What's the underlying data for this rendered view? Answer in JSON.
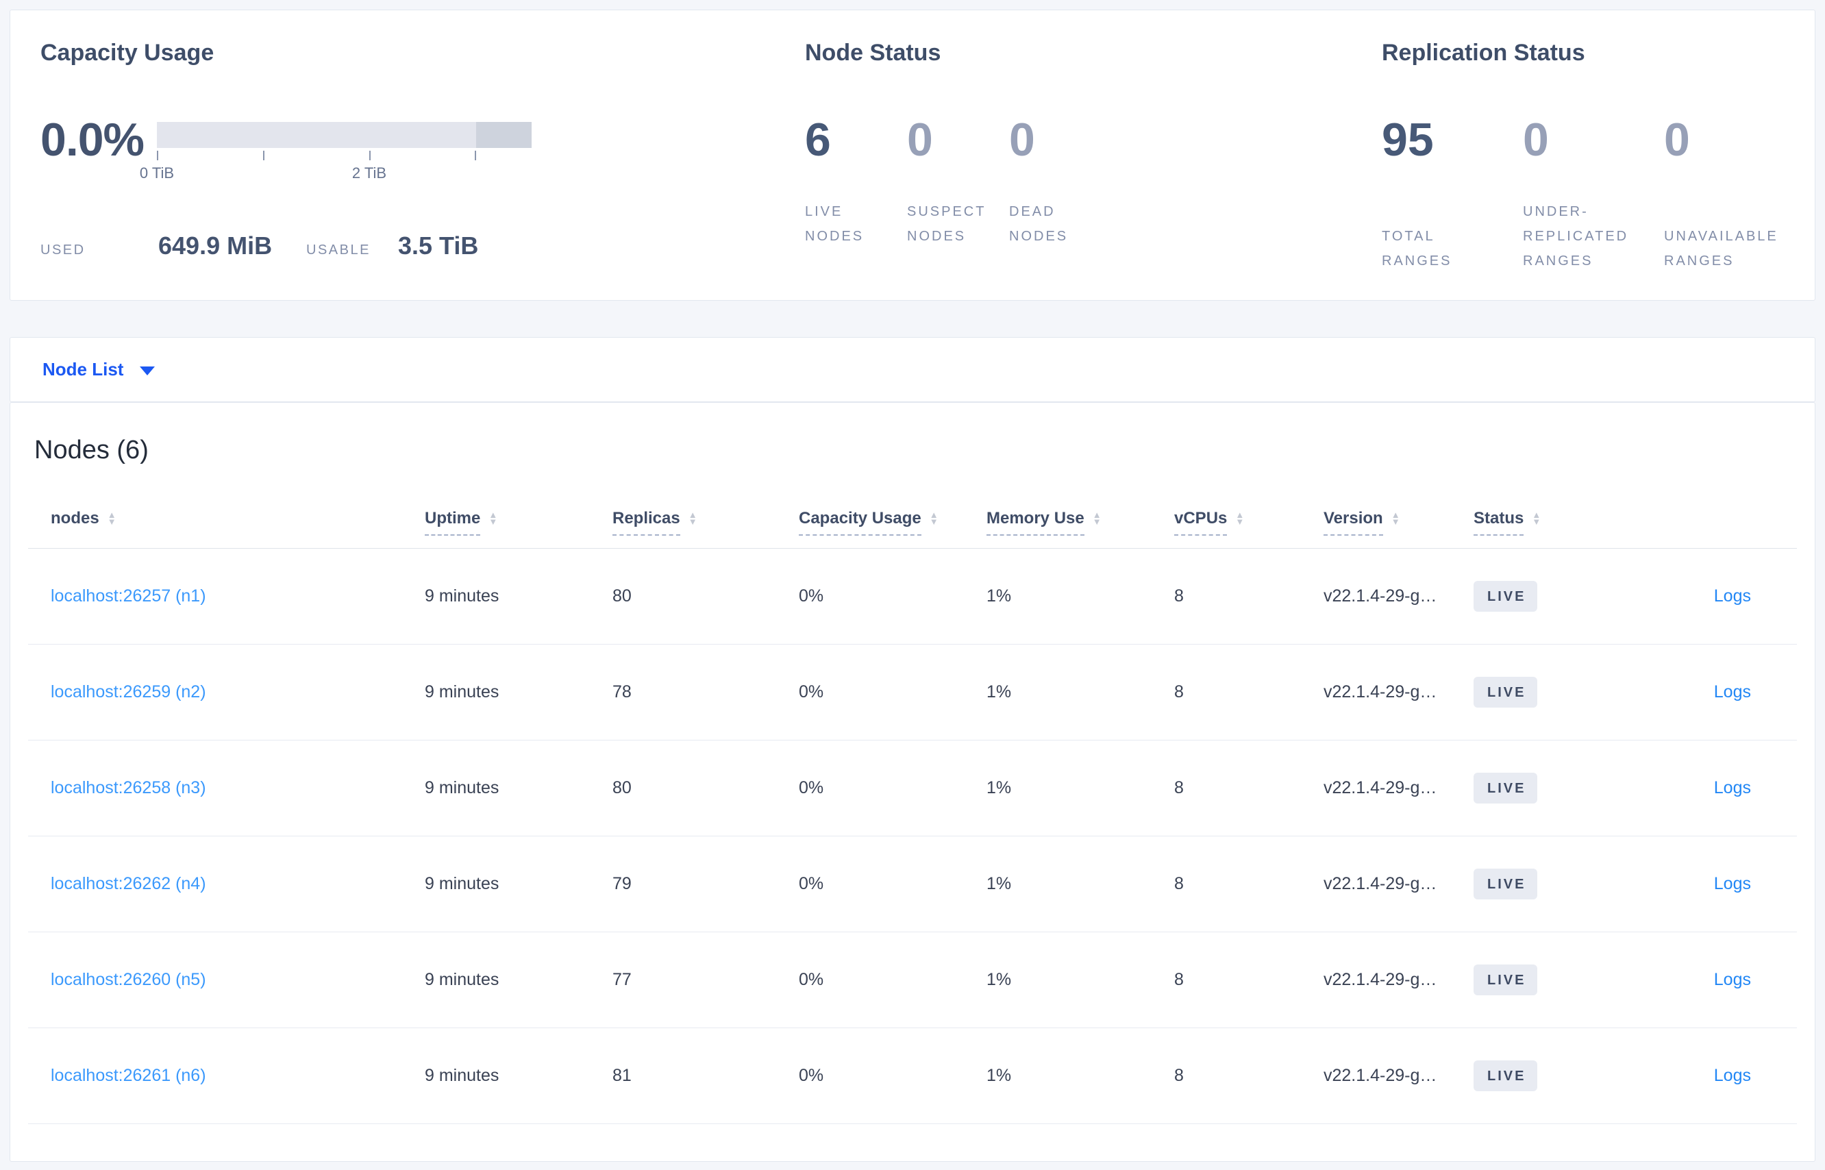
{
  "colors": {
    "page_bg": "#f4f6fa",
    "card_border": "#e2e7ef",
    "heading_text": "#3e4d68",
    "number_strong": "#475977",
    "number_muted": "#97a0b7",
    "label_muted": "#828da8",
    "capacity_bar_light": "#e3e5ed",
    "capacity_bar_dark": "#ced3dd",
    "link_primary_blue": "#1b58f2",
    "node_link_blue": "#3b99fc",
    "logs_link_blue": "#2287f5",
    "badge_bg": "#e8ebf2",
    "badge_text": "#3e4a63"
  },
  "summary": {
    "capacity": {
      "title": "Capacity Usage",
      "percent": "0.0%",
      "axis_ticks": [
        {
          "label": "0 TiB"
        },
        {
          "label": ""
        },
        {
          "label": "2 TiB"
        },
        {
          "label": ""
        }
      ],
      "used_label": "USED",
      "used_value": "649.9 MiB",
      "usable_label": "USABLE",
      "usable_value": "3.5 TiB"
    },
    "node_status": {
      "title": "Node Status",
      "stats": [
        {
          "value": "6",
          "muted": false,
          "lines": [
            "LIVE",
            "NODES"
          ],
          "name": "live-nodes"
        },
        {
          "value": "0",
          "muted": true,
          "lines": [
            "SUSPECT",
            "NODES"
          ],
          "name": "suspect-nodes"
        },
        {
          "value": "0",
          "muted": true,
          "lines": [
            "DEAD",
            "NODES"
          ],
          "name": "dead-nodes"
        }
      ]
    },
    "replication_status": {
      "title": "Replication Status",
      "stats": [
        {
          "value": "95",
          "muted": false,
          "lines": [
            "TOTAL",
            "RANGES"
          ],
          "name": "total-ranges"
        },
        {
          "value": "0",
          "muted": true,
          "lines": [
            "UNDER-",
            "REPLICATED",
            "RANGES"
          ],
          "name": "under-replicated-ranges"
        },
        {
          "value": "0",
          "muted": true,
          "lines": [
            "UNAVAILABLE",
            "RANGES"
          ],
          "name": "unavailable-ranges"
        }
      ]
    }
  },
  "node_list_selector": {
    "label": "Node List"
  },
  "nodes_table": {
    "title": "Nodes (6)",
    "columns": [
      {
        "key": "nodes",
        "label": "nodes",
        "dashed": false
      },
      {
        "key": "uptime",
        "label": "Uptime",
        "dashed": true
      },
      {
        "key": "replicas",
        "label": "Replicas",
        "dashed": true
      },
      {
        "key": "capacity",
        "label": "Capacity Usage",
        "dashed": true
      },
      {
        "key": "memory",
        "label": "Memory Use",
        "dashed": true
      },
      {
        "key": "vcpus",
        "label": "vCPUs",
        "dashed": true
      },
      {
        "key": "version",
        "label": "Version",
        "dashed": true
      },
      {
        "key": "status",
        "label": "Status",
        "dashed": true
      }
    ],
    "rows": [
      {
        "node": "localhost:26257 (n1)",
        "uptime": "9 minutes",
        "replicas": "80",
        "capacity": "0%",
        "memory": "1%",
        "vcpus": "8",
        "version": "v22.1.4-29-g…",
        "status": "LIVE",
        "logs": "Logs"
      },
      {
        "node": "localhost:26259 (n2)",
        "uptime": "9 minutes",
        "replicas": "78",
        "capacity": "0%",
        "memory": "1%",
        "vcpus": "8",
        "version": "v22.1.4-29-g…",
        "status": "LIVE",
        "logs": "Logs"
      },
      {
        "node": "localhost:26258 (n3)",
        "uptime": "9 minutes",
        "replicas": "80",
        "capacity": "0%",
        "memory": "1%",
        "vcpus": "8",
        "version": "v22.1.4-29-g…",
        "status": "LIVE",
        "logs": "Logs"
      },
      {
        "node": "localhost:26262 (n4)",
        "uptime": "9 minutes",
        "replicas": "79",
        "capacity": "0%",
        "memory": "1%",
        "vcpus": "8",
        "version": "v22.1.4-29-g…",
        "status": "LIVE",
        "logs": "Logs"
      },
      {
        "node": "localhost:26260 (n5)",
        "uptime": "9 minutes",
        "replicas": "77",
        "capacity": "0%",
        "memory": "1%",
        "vcpus": "8",
        "version": "v22.1.4-29-g…",
        "status": "LIVE",
        "logs": "Logs"
      },
      {
        "node": "localhost:26261 (n6)",
        "uptime": "9 minutes",
        "replicas": "81",
        "capacity": "0%",
        "memory": "1%",
        "vcpus": "8",
        "version": "v22.1.4-29-g…",
        "status": "LIVE",
        "logs": "Logs"
      }
    ]
  }
}
